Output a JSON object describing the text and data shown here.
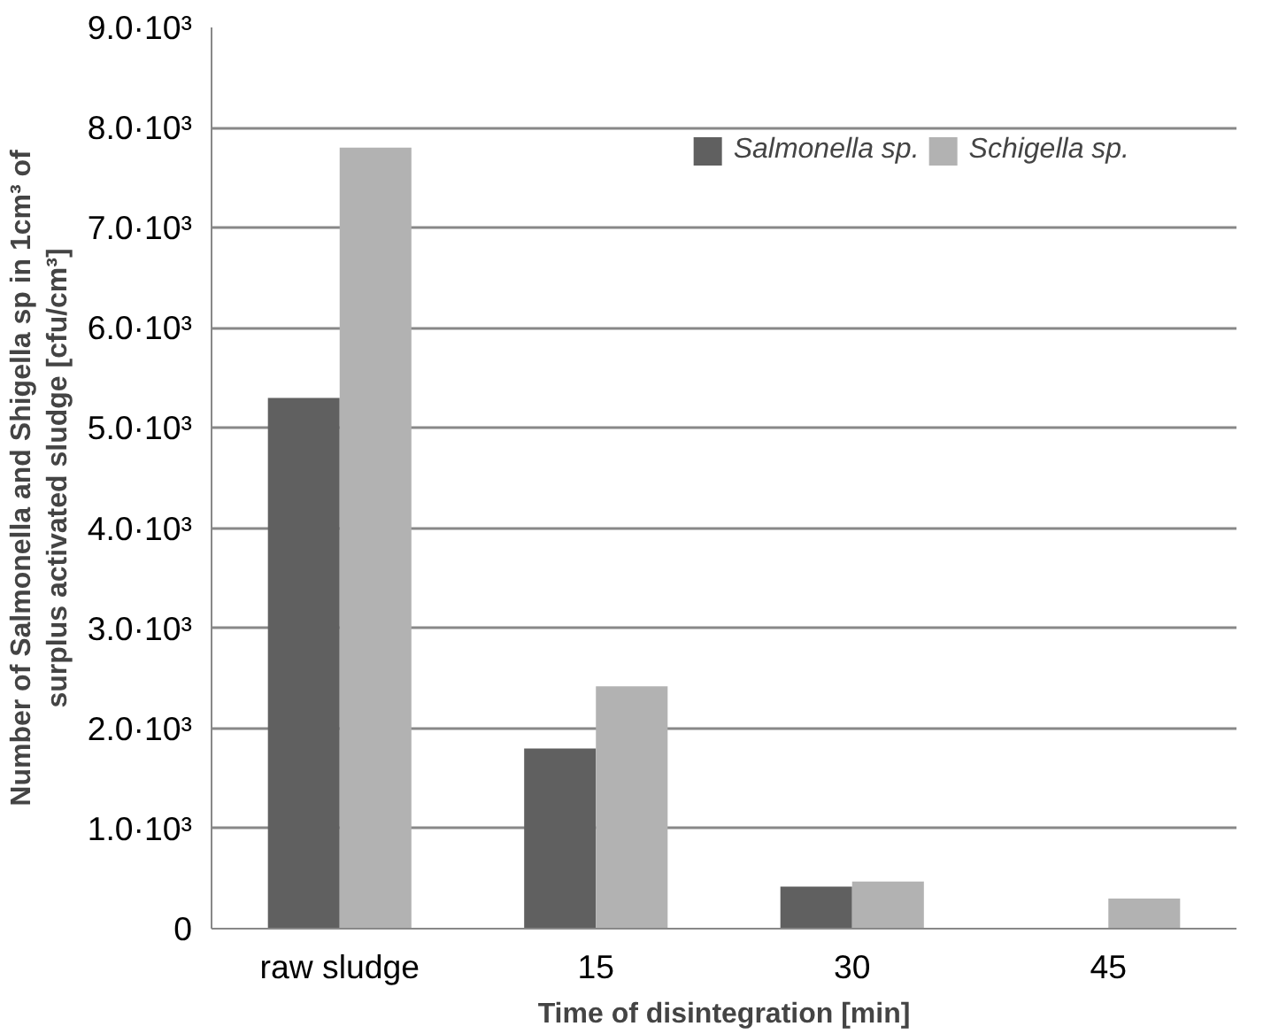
{
  "chart_data": {
    "type": "bar",
    "xlabel": "Time of disintegration [min]",
    "ylabel": "Number of Salmonella and Shigella sp in 1cm³ of\nsurplus activated sludge [cfu/cm³]",
    "categories": [
      "raw sludge",
      "15",
      "30",
      "45"
    ],
    "series": [
      {
        "name": "Salmonella sp.",
        "color": "#606060",
        "values": [
          5300,
          1800,
          420,
          0
        ]
      },
      {
        "name": "Schigella sp.",
        "color": "#b2b2b2",
        "values": [
          7800,
          2420,
          470,
          300
        ]
      }
    ],
    "ylim": [
      0,
      9000
    ],
    "yticks": [
      0,
      {
        "value": 1000,
        "label": "1.0·10³"
      },
      {
        "value": 2000,
        "label": "2.0·10³"
      },
      {
        "value": 3000,
        "label": "3.0·10³"
      },
      {
        "value": 4000,
        "label": "4.0·10³"
      },
      {
        "value": 5000,
        "label": "5.0·10³"
      },
      {
        "value": 6000,
        "label": "6.0·10³"
      },
      {
        "value": 7000,
        "label": "7.0·10³"
      },
      {
        "value": 8000,
        "label": "8.0·10³"
      },
      {
        "value": 9000,
        "label": "9.0·10³"
      }
    ],
    "grid": "y",
    "legend": "top right"
  }
}
